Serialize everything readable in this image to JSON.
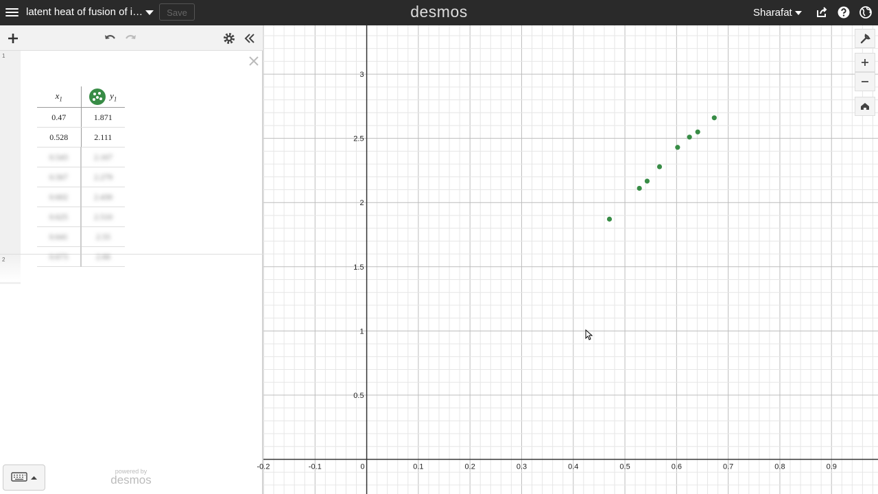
{
  "topbar": {
    "title": "latent heat of fusion of i…",
    "save_label": "Save",
    "logo": "desmos",
    "user": "Sharafat"
  },
  "expressions": {
    "row1_num": "1",
    "row2_num": "2",
    "table": {
      "headers": [
        {
          "name": "x",
          "sub": "1"
        },
        {
          "name": "y",
          "sub": "1"
        }
      ],
      "rows": [
        [
          "0.47",
          "1.871"
        ],
        [
          "0.528",
          "2.111"
        ],
        [
          "0.543",
          "2.167"
        ],
        [
          "0.567",
          "2.279"
        ],
        [
          "0.602",
          "2.430"
        ],
        [
          "0.625",
          "2.510"
        ],
        [
          "0.641",
          "2.55"
        ],
        [
          "0.673",
          "2.66"
        ]
      ],
      "point_color": "#388c46"
    }
  },
  "footer": {
    "powered_by": "powered by",
    "brand": "desmos"
  },
  "chart_data": {
    "type": "scatter",
    "x": [
      0.47,
      0.528,
      0.543,
      0.567,
      0.602,
      0.625,
      0.641,
      0.673
    ],
    "y": [
      1.871,
      2.111,
      2.167,
      2.279,
      2.43,
      2.51,
      2.55,
      2.66
    ],
    "xlim": [
      -0.2,
      0.99
    ],
    "ylim": [
      -0.27,
      3.38
    ],
    "x_ticks": [
      "-0.2",
      "-0.1",
      "0",
      "0.1",
      "0.2",
      "0.3",
      "0.4",
      "0.5",
      "0.6",
      "0.7",
      "0.8",
      "0.9"
    ],
    "y_ticks": [
      "0.5",
      "1",
      "1.5",
      "2",
      "2.5",
      "3"
    ],
    "grid": true,
    "color": "#388c46"
  }
}
